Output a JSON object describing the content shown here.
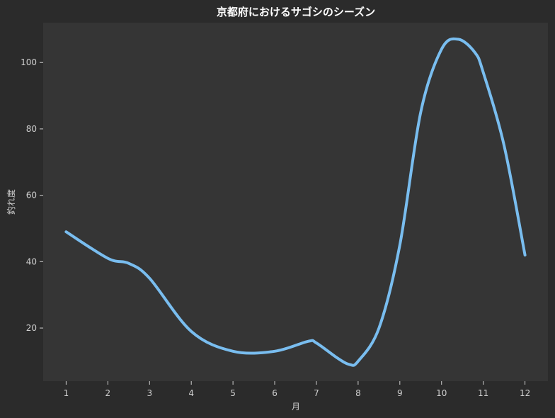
{
  "chart_data": {
    "type": "line",
    "title": "京都府におけるサゴシのシーズン",
    "xlabel": "月",
    "ylabel": "釣れ度",
    "x": [
      1,
      2,
      2.5,
      3,
      4,
      5,
      6,
      6.8,
      7,
      7.5,
      7.8,
      8,
      8.5,
      9,
      9.5,
      10,
      10.4,
      10.8,
      11,
      11.5,
      12
    ],
    "values": [
      49,
      41,
      39.5,
      35,
      19,
      13,
      13,
      16,
      15.5,
      11,
      9,
      10,
      20,
      45,
      85,
      104,
      107,
      103,
      97,
      75,
      42
    ],
    "xticks": [
      1,
      2,
      3,
      4,
      5,
      6,
      7,
      8,
      9,
      10,
      11,
      12
    ],
    "yticks": [
      20,
      40,
      60,
      80,
      100
    ],
    "xlim": [
      0.45,
      12.55
    ],
    "ylim": [
      4,
      112
    ],
    "grid": false,
    "colors": {
      "line": "#79bdef",
      "plot_bg": "#353535",
      "figure_bg": "#2b2b2b",
      "text": "#d0d0d0",
      "title": "#ffffff"
    }
  }
}
